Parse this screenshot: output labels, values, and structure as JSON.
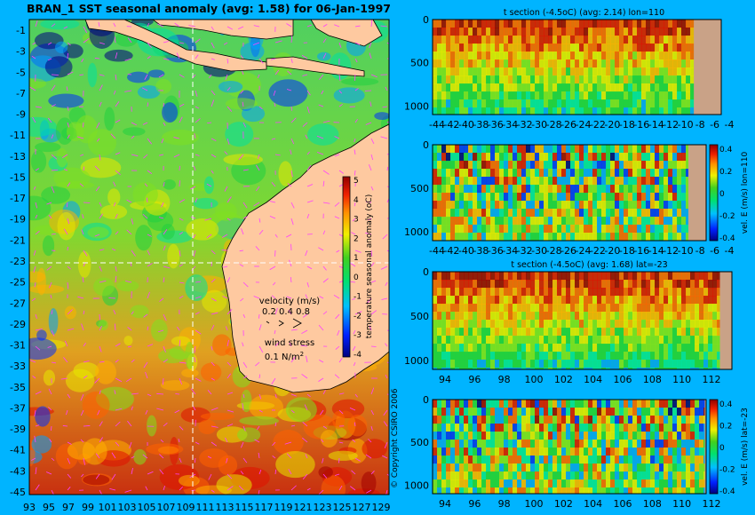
{
  "chart_data": [
    {
      "type": "heatmap",
      "title": "BRAN_1 SST seasonal anomaly (avg: 1.58) for 06-Jan-1997",
      "y_ticks": [
        "-1",
        "-3",
        "-5",
        "-7",
        "-9",
        "-11",
        "-13",
        "-15",
        "-17",
        "-19",
        "-21",
        "-23",
        "-25",
        "-27",
        "-29",
        "-31",
        "-33",
        "-35",
        "-37",
        "-39",
        "-41",
        "-43",
        "-45"
      ],
      "x_ticks": [
        "93",
        "95",
        "97",
        "99",
        "101",
        "103",
        "105",
        "107",
        "109",
        "111",
        "113",
        "115",
        "117",
        "119",
        "121",
        "123",
        "125",
        "127",
        "129"
      ],
      "xlim": [
        93,
        130
      ],
      "ylim": [
        -45,
        0
      ],
      "colorbar": {
        "label": "temperature seasonal anomaly (oC)",
        "ticks": [
          "5",
          "4",
          "3",
          "2",
          "1",
          "0",
          "-1",
          "-2",
          "-3",
          "-4"
        ],
        "range": [
          -4,
          5
        ]
      },
      "velocity_legend": {
        "title": "velocity (m/s)",
        "values": "0.2 0.4 0.8"
      },
      "wind_legend": {
        "title": "wind stress",
        "value": "0.1 N/m",
        "superscript": "2"
      },
      "section_lines": {
        "lon": 110,
        "lat": -23
      }
    },
    {
      "type": "heatmap",
      "title": "t section (-4.5oC) (avg: 2.14) lon=110",
      "x_ticks": [
        "-44",
        "-42",
        "-40",
        "-38",
        "-36",
        "-34",
        "-32",
        "-30",
        "-28",
        "-26",
        "-24",
        "-22",
        "-20",
        "-18",
        "-16",
        "-14",
        "-12",
        "-10",
        "-8",
        "-6",
        "-4"
      ],
      "y_ticks": [
        "0",
        "500",
        "1000"
      ],
      "ylim": [
        1100,
        0
      ]
    },
    {
      "type": "heatmap",
      "title": "",
      "x_ticks": [
        "-44",
        "-42",
        "-40",
        "-38",
        "-36",
        "-34",
        "-32",
        "-30",
        "-28",
        "-26",
        "-24",
        "-22",
        "-20",
        "-18",
        "-16",
        "-14",
        "-12",
        "-10",
        "-8",
        "-6",
        "-4"
      ],
      "y_ticks": [
        "0",
        "500",
        "1000"
      ],
      "colorbar": {
        "label": "vel. E (m/s) lon=110",
        "ticks": [
          "0.4",
          "0.2",
          "0",
          "-0.2",
          "-0.4"
        ],
        "range": [
          -0.4,
          0.4
        ]
      }
    },
    {
      "type": "heatmap",
      "title": "t section (-4.5oC) (avg: 1.68) lat=-23",
      "x_ticks": [
        "94",
        "96",
        "98",
        "100",
        "102",
        "104",
        "106",
        "108",
        "110",
        "112"
      ],
      "y_ticks": [
        "0",
        "500",
        "1000"
      ]
    },
    {
      "type": "heatmap",
      "title": "",
      "x_ticks": [
        "94",
        "96",
        "98",
        "100",
        "102",
        "104",
        "106",
        "108",
        "110",
        "112"
      ],
      "y_ticks": [
        "0",
        "500",
        "1000"
      ],
      "colorbar": {
        "label": "vel. E (m/s) lat=-23",
        "ticks": [
          "0.4",
          "0.2",
          "0",
          "-0.2",
          "-0.4"
        ],
        "range": [
          -0.4,
          0.4
        ]
      }
    }
  ],
  "copyright": "© Copyright CSIRO 2006",
  "colors": {
    "background": "#00b4ff",
    "land": "#fec9a0",
    "land_section": "#c9a287",
    "vector": "#ff40ff"
  }
}
